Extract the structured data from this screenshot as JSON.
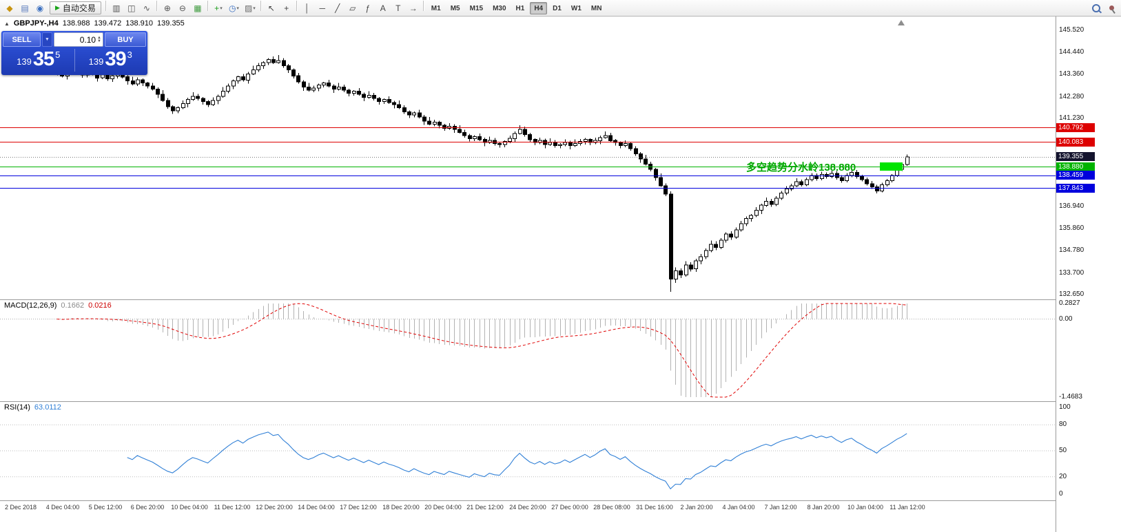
{
  "toolbar": {
    "autotrading_label": "自动交易",
    "timeframes": [
      "M1",
      "M5",
      "M15",
      "M30",
      "H1",
      "H4",
      "D1",
      "W1",
      "MN"
    ],
    "active_timeframe": "H4",
    "left_icons": [
      {
        "name": "new-order-icon",
        "glyph": "◆",
        "color": "#c89410"
      },
      {
        "name": "chart-window-icon",
        "glyph": "▤",
        "color": "#5577bb"
      },
      {
        "name": "market-watch-icon",
        "glyph": "◉",
        "color": "#3a6fc0"
      }
    ],
    "mid_icons": [
      {
        "sep": true
      },
      {
        "name": "bar-chart-icon",
        "glyph": "▥",
        "color": "#555555"
      },
      {
        "name": "candlestick-chart-icon",
        "glyph": "◫",
        "color": "#555555"
      },
      {
        "name": "line-chart-icon",
        "glyph": "∿",
        "color": "#555555"
      },
      {
        "sep": true
      },
      {
        "name": "zoom-in-icon",
        "glyph": "⊕",
        "color": "#555555"
      },
      {
        "name": "zoom-out-icon",
        "glyph": "⊖",
        "color": "#555555"
      },
      {
        "name": "tile-windows-icon",
        "glyph": "▦",
        "color": "#3f9b3f"
      },
      {
        "sep": true
      },
      {
        "name": "indicators-icon",
        "glyph": "+",
        "color": "#1e9e1e",
        "caret": true
      },
      {
        "name": "periods-icon",
        "glyph": "◷",
        "color": "#3a6fc0",
        "caret": true
      },
      {
        "name": "templates-icon",
        "glyph": "▨",
        "color": "#6b6b6b",
        "caret": true
      },
      {
        "sep": true
      },
      {
        "name": "cursor-icon",
        "glyph": "↖",
        "color": "#444444"
      },
      {
        "name": "crosshair-icon",
        "glyph": "+",
        "color": "#444444"
      },
      {
        "sep": true
      },
      {
        "name": "vertical-line-icon",
        "glyph": "│",
        "color": "#444444"
      },
      {
        "name": "horizontal-line-icon",
        "glyph": "─",
        "color": "#444444"
      },
      {
        "name": "trendline-icon",
        "glyph": "╱",
        "color": "#444444"
      },
      {
        "name": "channel-icon",
        "glyph": "▱",
        "color": "#444444"
      },
      {
        "name": "fibonacci-icon",
        "glyph": "ƒ",
        "color": "#444444"
      },
      {
        "name": "text-icon",
        "glyph": "A",
        "color": "#444444"
      },
      {
        "name": "text-label-icon",
        "glyph": "T",
        "color": "#444444"
      },
      {
        "name": "arrows-icon",
        "glyph": "→",
        "color": "#444444"
      },
      {
        "sep": true
      }
    ]
  },
  "chart": {
    "header": {
      "symbol_period": "GBPJPY-,H4",
      "open": "138.988",
      "high": "139.472",
      "low": "138.910",
      "close": "139.355"
    },
    "trade_panel": {
      "sell_label": "SELL",
      "buy_label": "BUY",
      "volume": "0.10",
      "sell_price": {
        "prefix": "139",
        "big": "35",
        "sup": "5"
      },
      "buy_price": {
        "prefix": "139",
        "big": "39",
        "sup": "3"
      }
    },
    "annotation": {
      "text": "多空趋势分水岭138.880",
      "color": "#00a800",
      "marker_color": "#00e400"
    },
    "hlines": [
      {
        "price": 140.792,
        "color": "#dd0000",
        "label": "140.792",
        "badge": "#dd0000",
        "dash": ""
      },
      {
        "price": 140.083,
        "color": "#dd0000",
        "label": "140.083",
        "badge": "#dd0000",
        "dash": ""
      },
      {
        "price": 139.355,
        "color": "#777777",
        "label": "139.355",
        "badge": "#14142e",
        "dash": "1 2"
      },
      {
        "price": 138.88,
        "color": "#00b300",
        "label": "138.880",
        "badge": "#00b300",
        "dash": ""
      },
      {
        "price": 138.459,
        "color": "#0000dd",
        "label": "138.459",
        "badge": "#0000dd",
        "dash": ""
      },
      {
        "price": 137.843,
        "color": "#0000dd",
        "label": "137.843",
        "badge": "#0000dd",
        "dash": ""
      }
    ]
  },
  "chart_data": {
    "type": "candlestick",
    "symbol": "GBPJPY-",
    "period": "H4",
    "title": "GBPJPY-,H4 138.988 139.472 138.910 139.355",
    "colors": {
      "bull": "#ffffff",
      "bear": "#000000",
      "wick": "#000000"
    },
    "y_axis_labels": [
      {
        "label": "145.520",
        "price": 145.52
      },
      {
        "label": "144.440",
        "price": 144.44
      },
      {
        "label": "143.360",
        "price": 143.36
      },
      {
        "label": "142.280",
        "price": 142.28
      },
      {
        "label": "141.230",
        "price": 141.23
      },
      {
        "label": "136.940",
        "price": 136.94
      },
      {
        "label": "135.860",
        "price": 135.86
      },
      {
        "label": "134.780",
        "price": 134.78
      },
      {
        "label": "133.700",
        "price": 133.7
      },
      {
        "label": "132.650",
        "price": 132.65
      }
    ],
    "time_labels": [
      "2 Dec 2018",
      "4 Dec 04:00",
      "5 Dec 12:00",
      "6 Dec 20:00",
      "10 Dec 04:00",
      "11 Dec 12:00",
      "12 Dec 20:00",
      "14 Dec 04:00",
      "17 Dec 12:00",
      "18 Dec 20:00",
      "20 Dec 04:00",
      "21 Dec 12:00",
      "24 Dec 20:00",
      "27 Dec 00:00",
      "28 Dec 08:00",
      "31 Dec 16:00",
      "2 Jan 20:00",
      "4 Jan 04:00",
      "7 Jan 12:00",
      "8 Jan 20:00",
      "10 Jan 04:00",
      "11 Jan 12:00"
    ],
    "candles": [
      [
        143.6,
        143.66,
        143.33,
        143.45
      ],
      [
        143.45,
        143.6,
        143.23,
        143.3
      ],
      [
        143.3,
        143.64,
        143.12,
        143.55
      ],
      [
        143.55,
        143.9,
        143.49,
        143.7
      ],
      [
        143.7,
        143.82,
        143.4,
        143.5
      ],
      [
        143.5,
        143.57,
        143.2,
        143.35
      ],
      [
        143.35,
        143.66,
        143.23,
        143.6
      ],
      [
        143.6,
        143.75,
        143.33,
        143.4
      ],
      [
        143.4,
        143.49,
        143.02,
        143.2
      ],
      [
        143.2,
        143.55,
        143.14,
        143.35
      ],
      [
        143.35,
        143.47,
        143.05,
        143.15
      ],
      [
        143.15,
        143.37,
        143.0,
        143.3
      ],
      [
        143.3,
        143.51,
        143.18,
        143.45
      ],
      [
        143.45,
        143.6,
        143.18,
        143.25
      ],
      [
        143.25,
        143.34,
        142.87,
        143.05
      ],
      [
        143.05,
        143.25,
        142.84,
        142.9
      ],
      [
        142.9,
        143.22,
        142.8,
        143.1
      ],
      [
        143.1,
        143.17,
        142.8,
        142.95
      ],
      [
        142.95,
        143.01,
        142.68,
        142.8
      ],
      [
        142.8,
        142.95,
        142.58,
        142.65
      ],
      [
        142.65,
        142.74,
        142.22,
        142.4
      ],
      [
        142.4,
        142.6,
        142.04,
        142.1
      ],
      [
        142.1,
        142.22,
        141.7,
        141.8
      ],
      [
        141.8,
        141.87,
        141.45,
        141.6
      ],
      [
        141.6,
        141.81,
        141.48,
        141.75
      ],
      [
        141.75,
        142.1,
        141.68,
        141.95
      ],
      [
        141.95,
        142.24,
        141.77,
        142.15
      ],
      [
        142.15,
        142.5,
        142.09,
        142.3
      ],
      [
        142.3,
        142.42,
        142.1,
        142.2
      ],
      [
        142.2,
        142.27,
        141.9,
        142.05
      ],
      [
        142.05,
        142.11,
        141.78,
        141.9
      ],
      [
        141.9,
        142.25,
        141.83,
        142.1
      ],
      [
        142.1,
        142.39,
        141.92,
        142.3
      ],
      [
        142.3,
        142.75,
        142.24,
        142.55
      ],
      [
        142.55,
        142.92,
        142.45,
        142.8
      ],
      [
        142.8,
        143.12,
        142.65,
        143.05
      ],
      [
        143.05,
        143.31,
        142.93,
        143.25
      ],
      [
        143.25,
        143.4,
        143.03,
        143.1
      ],
      [
        143.1,
        143.49,
        142.92,
        143.4
      ],
      [
        143.4,
        143.8,
        143.34,
        143.6
      ],
      [
        143.6,
        143.92,
        143.5,
        143.8
      ],
      [
        143.8,
        144.02,
        143.65,
        143.95
      ],
      [
        143.95,
        144.16,
        143.83,
        144.1
      ],
      [
        144.1,
        144.25,
        143.88,
        143.95
      ],
      [
        143.95,
        144.32,
        143.89,
        144.05
      ],
      [
        144.05,
        144.17,
        143.7,
        143.8
      ],
      [
        143.8,
        143.87,
        143.45,
        143.6
      ],
      [
        143.6,
        143.66,
        143.18,
        143.3
      ],
      [
        143.3,
        143.45,
        142.93,
        143.0
      ],
      [
        143.0,
        143.09,
        142.57,
        142.75
      ],
      [
        142.75,
        142.95,
        142.54,
        142.6
      ],
      [
        142.6,
        142.82,
        142.5,
        142.7
      ],
      [
        142.7,
        142.92,
        142.55,
        142.85
      ],
      [
        142.85,
        143.01,
        142.73,
        142.95
      ],
      [
        142.95,
        143.1,
        142.73,
        142.8
      ],
      [
        142.8,
        142.89,
        142.47,
        142.65
      ],
      [
        142.65,
        142.95,
        142.59,
        142.75
      ],
      [
        142.75,
        142.87,
        142.5,
        142.6
      ],
      [
        142.6,
        142.67,
        142.3,
        142.45
      ],
      [
        142.45,
        142.61,
        142.33,
        142.55
      ],
      [
        142.55,
        142.7,
        142.33,
        142.4
      ],
      [
        142.4,
        142.49,
        142.07,
        142.25
      ],
      [
        142.25,
        142.55,
        142.19,
        142.35
      ],
      [
        142.35,
        142.47,
        142.1,
        142.2
      ],
      [
        142.2,
        142.27,
        141.9,
        142.05
      ],
      [
        142.05,
        142.21,
        141.93,
        142.15
      ],
      [
        142.15,
        142.3,
        141.93,
        142.0
      ],
      [
        142.0,
        142.09,
        141.72,
        141.9
      ],
      [
        141.9,
        142.1,
        141.69,
        141.75
      ],
      [
        141.75,
        141.87,
        141.45,
        141.55
      ],
      [
        141.55,
        141.62,
        141.25,
        141.4
      ],
      [
        141.4,
        141.56,
        141.28,
        141.5
      ],
      [
        141.5,
        141.65,
        141.23,
        141.3
      ],
      [
        141.3,
        141.39,
        140.92,
        141.1
      ],
      [
        141.1,
        141.3,
        140.89,
        140.95
      ],
      [
        140.95,
        141.17,
        140.85,
        141.05
      ],
      [
        141.05,
        141.12,
        140.75,
        140.9
      ],
      [
        140.9,
        140.96,
        140.63,
        140.75
      ],
      [
        140.75,
        141.0,
        140.68,
        140.85
      ],
      [
        140.85,
        140.94,
        140.52,
        140.7
      ],
      [
        140.7,
        140.9,
        140.49,
        140.55
      ],
      [
        140.55,
        140.67,
        140.3,
        140.4
      ],
      [
        140.4,
        140.47,
        140.1,
        140.25
      ],
      [
        140.25,
        140.41,
        140.13,
        140.35
      ],
      [
        140.35,
        140.5,
        140.13,
        140.2
      ],
      [
        140.2,
        140.29,
        139.87,
        140.05
      ],
      [
        140.05,
        140.35,
        139.99,
        140.15
      ],
      [
        140.15,
        140.27,
        139.9,
        140.0
      ],
      [
        140.0,
        140.07,
        139.8,
        139.95
      ],
      [
        139.95,
        140.16,
        139.83,
        140.1
      ],
      [
        140.1,
        140.4,
        140.03,
        140.25
      ],
      [
        140.25,
        140.59,
        140.07,
        140.5
      ],
      [
        140.5,
        140.9,
        140.44,
        140.7
      ],
      [
        140.7,
        140.82,
        140.35,
        140.45
      ],
      [
        140.45,
        140.52,
        140.05,
        140.2
      ],
      [
        140.2,
        140.26,
        139.93,
        140.05
      ],
      [
        140.05,
        140.3,
        139.98,
        140.15
      ],
      [
        140.15,
        140.24,
        139.77,
        139.95
      ],
      [
        139.95,
        140.25,
        139.89,
        140.05
      ],
      [
        140.05,
        140.17,
        139.8,
        139.9
      ],
      [
        139.9,
        140.02,
        139.78,
        139.95
      ],
      [
        139.95,
        140.2,
        139.88,
        140.05
      ],
      [
        140.05,
        140.14,
        139.72,
        139.9
      ],
      [
        139.9,
        140.2,
        139.84,
        140.0
      ],
      [
        140.0,
        140.22,
        139.9,
        140.1
      ],
      [
        140.1,
        140.27,
        139.95,
        140.2
      ],
      [
        140.2,
        140.26,
        139.93,
        140.05
      ],
      [
        140.05,
        140.3,
        139.98,
        140.15
      ],
      [
        140.15,
        140.39,
        139.97,
        140.3
      ],
      [
        140.3,
        140.6,
        140.24,
        140.4
      ],
      [
        140.4,
        140.52,
        140.05,
        140.15
      ],
      [
        140.15,
        140.22,
        139.9,
        140.05
      ],
      [
        140.05,
        140.11,
        139.78,
        139.9
      ],
      [
        139.9,
        140.15,
        139.83,
        140.0
      ],
      [
        140.0,
        140.08,
        139.65,
        139.75
      ],
      [
        139.75,
        139.87,
        139.4,
        139.5
      ],
      [
        139.5,
        139.59,
        139.07,
        139.25
      ],
      [
        139.25,
        139.45,
        138.94,
        139.0
      ],
      [
        139.0,
        139.12,
        138.65,
        138.75
      ],
      [
        138.75,
        138.82,
        138.2,
        138.35
      ],
      [
        138.35,
        138.55,
        137.89,
        137.95
      ],
      [
        137.95,
        138.07,
        137.45,
        137.55
      ],
      [
        137.55,
        137.68,
        132.78,
        133.4
      ],
      [
        133.4,
        133.98,
        133.22,
        133.8
      ],
      [
        133.8,
        133.92,
        133.45,
        133.6
      ],
      [
        133.6,
        134.28,
        133.52,
        134.1
      ],
      [
        134.1,
        134.22,
        133.78,
        133.9
      ],
      [
        133.9,
        134.4,
        133.76,
        134.3
      ],
      [
        134.3,
        134.62,
        134.12,
        134.5
      ],
      [
        134.5,
        134.89,
        134.38,
        134.8
      ],
      [
        134.8,
        135.28,
        134.72,
        135.1
      ],
      [
        135.1,
        135.24,
        134.82,
        134.95
      ],
      [
        134.95,
        135.4,
        134.86,
        135.3
      ],
      [
        135.3,
        135.68,
        135.18,
        135.6
      ],
      [
        135.6,
        135.74,
        135.32,
        135.45
      ],
      [
        135.45,
        135.92,
        135.36,
        135.8
      ],
      [
        135.8,
        136.24,
        135.71,
        136.1
      ],
      [
        136.1,
        136.46,
        135.98,
        136.35
      ],
      [
        136.35,
        136.58,
        136.2,
        136.5
      ],
      [
        136.5,
        136.9,
        136.42,
        136.75
      ],
      [
        136.75,
        137.08,
        136.58,
        137.0
      ],
      [
        137.0,
        137.38,
        136.93,
        137.2
      ],
      [
        137.2,
        137.31,
        136.92,
        137.05
      ],
      [
        137.05,
        137.44,
        136.96,
        137.35
      ],
      [
        137.35,
        137.7,
        137.26,
        137.6
      ],
      [
        137.6,
        137.93,
        137.5,
        137.8
      ],
      [
        137.8,
        138.04,
        137.7,
        137.95
      ],
      [
        137.95,
        138.31,
        137.88,
        138.15
      ],
      [
        138.15,
        138.25,
        137.92,
        138.0
      ],
      [
        138.0,
        138.35,
        137.93,
        138.25
      ],
      [
        138.25,
        138.56,
        138.16,
        138.45
      ],
      [
        138.45,
        138.55,
        138.19,
        138.3
      ],
      [
        138.3,
        138.64,
        138.22,
        138.5
      ],
      [
        138.5,
        138.6,
        138.3,
        138.4
      ],
      [
        138.4,
        138.69,
        138.32,
        138.55
      ],
      [
        138.55,
        138.66,
        138.24,
        138.35
      ],
      [
        138.35,
        138.47,
        138.09,
        138.2
      ],
      [
        138.2,
        138.57,
        138.12,
        138.45
      ],
      [
        138.45,
        138.73,
        138.36,
        138.6
      ],
      [
        138.6,
        138.72,
        138.3,
        138.4
      ],
      [
        138.4,
        138.49,
        138.16,
        138.25
      ],
      [
        138.25,
        138.34,
        137.97,
        138.05
      ],
      [
        138.05,
        138.18,
        137.8,
        137.9
      ],
      [
        137.9,
        137.99,
        137.58,
        137.7
      ],
      [
        137.7,
        138.09,
        137.62,
        138.0
      ],
      [
        138.0,
        138.28,
        137.92,
        138.2
      ],
      [
        138.2,
        138.52,
        138.11,
        138.45
      ],
      [
        138.45,
        138.84,
        138.38,
        138.75
      ],
      [
        138.75,
        139.07,
        138.66,
        138.99
      ],
      [
        138.99,
        139.47,
        138.91,
        139.36
      ]
    ]
  },
  "macd": {
    "label": "MACD(12,26,9)",
    "value_main": "0.1662",
    "value_signal": "0.0216",
    "fast": 12,
    "slow": 26,
    "signal": 9,
    "scale": {
      "max": "0.2827",
      "zero": "0.00",
      "min": "-1.4683"
    },
    "colors": {
      "histogram": "#b2b2b2",
      "signal": "#e00000"
    }
  },
  "rsi": {
    "label": "RSI(14)",
    "value": "63.0112",
    "period": 14,
    "scale_labels": [
      {
        "label": "100",
        "value": 100
      },
      {
        "label": "80",
        "value": 80
      },
      {
        "label": "50",
        "value": 50
      },
      {
        "label": "20",
        "value": 20
      },
      {
        "label": "0",
        "value": 0
      }
    ],
    "levels": [
      80,
      50,
      20
    ],
    "color": "#2f7fd6"
  }
}
